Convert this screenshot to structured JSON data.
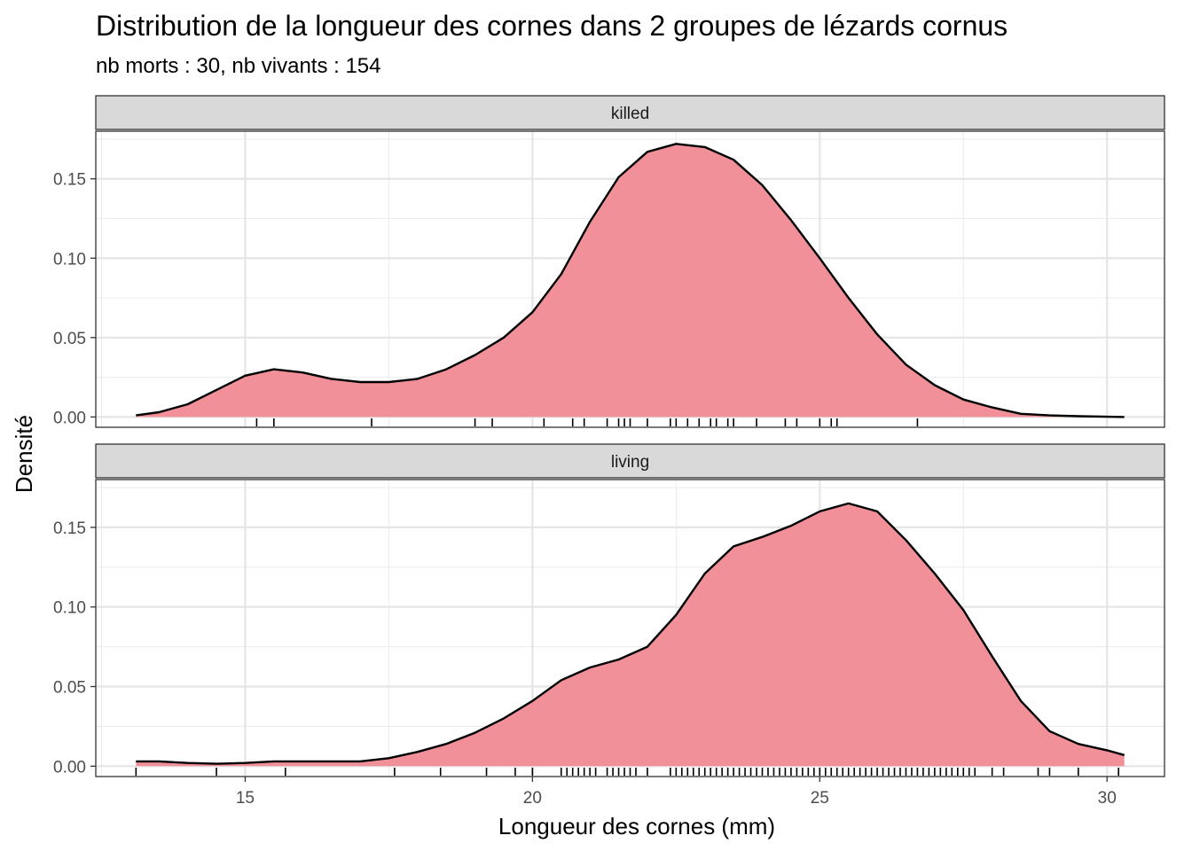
{
  "chart_data": {
    "type": "area",
    "title": "Distribution de la longueur des cornes dans 2 groupes de lézards cornus",
    "subtitle": "nb morts : 30, nb vivants : 154",
    "xlabel": "Longueur des cornes (mm)",
    "ylabel": "Densité",
    "xlim": [
      12.4,
      31.0
    ],
    "ylim": [
      -0.0065,
      0.18
    ],
    "x_ticks": [
      15,
      20,
      25,
      30
    ],
    "x_tick_labels": [
      "15",
      "20",
      "25",
      "30"
    ],
    "y_ticks": [
      0.0,
      0.05,
      0.1,
      0.15
    ],
    "y_tick_labels": [
      "0.00",
      "0.05",
      "0.10",
      "0.15"
    ],
    "grid": true,
    "fill_color": "#F08A93",
    "line_color": "#000000",
    "panels": [
      {
        "label": "killed",
        "density": [
          [
            13.1,
            0.001
          ],
          [
            13.5,
            0.003
          ],
          [
            14.0,
            0.008
          ],
          [
            14.5,
            0.017
          ],
          [
            15.0,
            0.026
          ],
          [
            15.5,
            0.03
          ],
          [
            16.0,
            0.028
          ],
          [
            16.5,
            0.024
          ],
          [
            17.0,
            0.022
          ],
          [
            17.5,
            0.022
          ],
          [
            18.0,
            0.024
          ],
          [
            18.5,
            0.03
          ],
          [
            19.0,
            0.039
          ],
          [
            19.5,
            0.05
          ],
          [
            20.0,
            0.066
          ],
          [
            20.5,
            0.09
          ],
          [
            21.0,
            0.123
          ],
          [
            21.5,
            0.151
          ],
          [
            22.0,
            0.167
          ],
          [
            22.5,
            0.172
          ],
          [
            23.0,
            0.17
          ],
          [
            23.5,
            0.162
          ],
          [
            24.0,
            0.146
          ],
          [
            24.5,
            0.124
          ],
          [
            25.0,
            0.1
          ],
          [
            25.5,
            0.075
          ],
          [
            26.0,
            0.052
          ],
          [
            26.5,
            0.033
          ],
          [
            27.0,
            0.02
          ],
          [
            27.5,
            0.011
          ],
          [
            28.0,
            0.006
          ],
          [
            28.5,
            0.002
          ],
          [
            29.0,
            0.001
          ],
          [
            29.5,
            0.0005
          ],
          [
            30.3,
            0.0
          ]
        ],
        "rug": [
          15.2,
          15.5,
          17.2,
          19.0,
          19.3,
          20.2,
          20.7,
          20.9,
          21.3,
          21.5,
          21.6,
          21.7,
          22.0,
          22.4,
          22.5,
          22.7,
          22.9,
          23.1,
          23.2,
          23.4,
          23.5,
          23.9,
          24.4,
          24.6,
          25.0,
          25.2,
          25.3,
          26.7
        ]
      },
      {
        "label": "living",
        "density": [
          [
            13.1,
            0.003
          ],
          [
            13.5,
            0.003
          ],
          [
            14.0,
            0.002
          ],
          [
            14.5,
            0.0015
          ],
          [
            15.0,
            0.002
          ],
          [
            15.5,
            0.003
          ],
          [
            16.0,
            0.003
          ],
          [
            16.5,
            0.003
          ],
          [
            17.0,
            0.003
          ],
          [
            17.5,
            0.005
          ],
          [
            18.0,
            0.009
          ],
          [
            18.5,
            0.014
          ],
          [
            19.0,
            0.021
          ],
          [
            19.5,
            0.03
          ],
          [
            20.0,
            0.041
          ],
          [
            20.5,
            0.054
          ],
          [
            21.0,
            0.062
          ],
          [
            21.5,
            0.067
          ],
          [
            22.0,
            0.075
          ],
          [
            22.5,
            0.095
          ],
          [
            23.0,
            0.121
          ],
          [
            23.5,
            0.138
          ],
          [
            24.0,
            0.144
          ],
          [
            24.5,
            0.151
          ],
          [
            25.0,
            0.16
          ],
          [
            25.5,
            0.165
          ],
          [
            26.0,
            0.16
          ],
          [
            26.5,
            0.142
          ],
          [
            27.0,
            0.121
          ],
          [
            27.5,
            0.098
          ],
          [
            28.0,
            0.069
          ],
          [
            28.5,
            0.041
          ],
          [
            29.0,
            0.022
          ],
          [
            29.5,
            0.014
          ],
          [
            30.0,
            0.01
          ],
          [
            30.3,
            0.007
          ]
        ],
        "rug": [
          13.1,
          14.5,
          15.7,
          17.6,
          18.4,
          19.2,
          19.7,
          20.0,
          20.5,
          20.6,
          20.7,
          20.8,
          20.9,
          21.0,
          21.1,
          21.3,
          21.4,
          21.5,
          21.6,
          21.7,
          21.8,
          22.0,
          22.4,
          22.5,
          22.6,
          22.7,
          22.8,
          22.9,
          23.0,
          23.1,
          23.2,
          23.3,
          23.4,
          23.5,
          23.6,
          23.7,
          23.8,
          23.9,
          24.0,
          24.1,
          24.2,
          24.3,
          24.4,
          24.5,
          24.6,
          24.7,
          24.8,
          24.9,
          25.0,
          25.1,
          25.2,
          25.3,
          25.4,
          25.5,
          25.6,
          25.7,
          25.8,
          25.9,
          26.0,
          26.1,
          26.2,
          26.3,
          26.4,
          26.5,
          26.6,
          26.7,
          26.8,
          26.9,
          27.0,
          27.1,
          27.2,
          27.3,
          27.4,
          27.5,
          27.6,
          27.7,
          28.0,
          28.2,
          28.8,
          29.0,
          29.5,
          30.2
        ]
      }
    ]
  }
}
